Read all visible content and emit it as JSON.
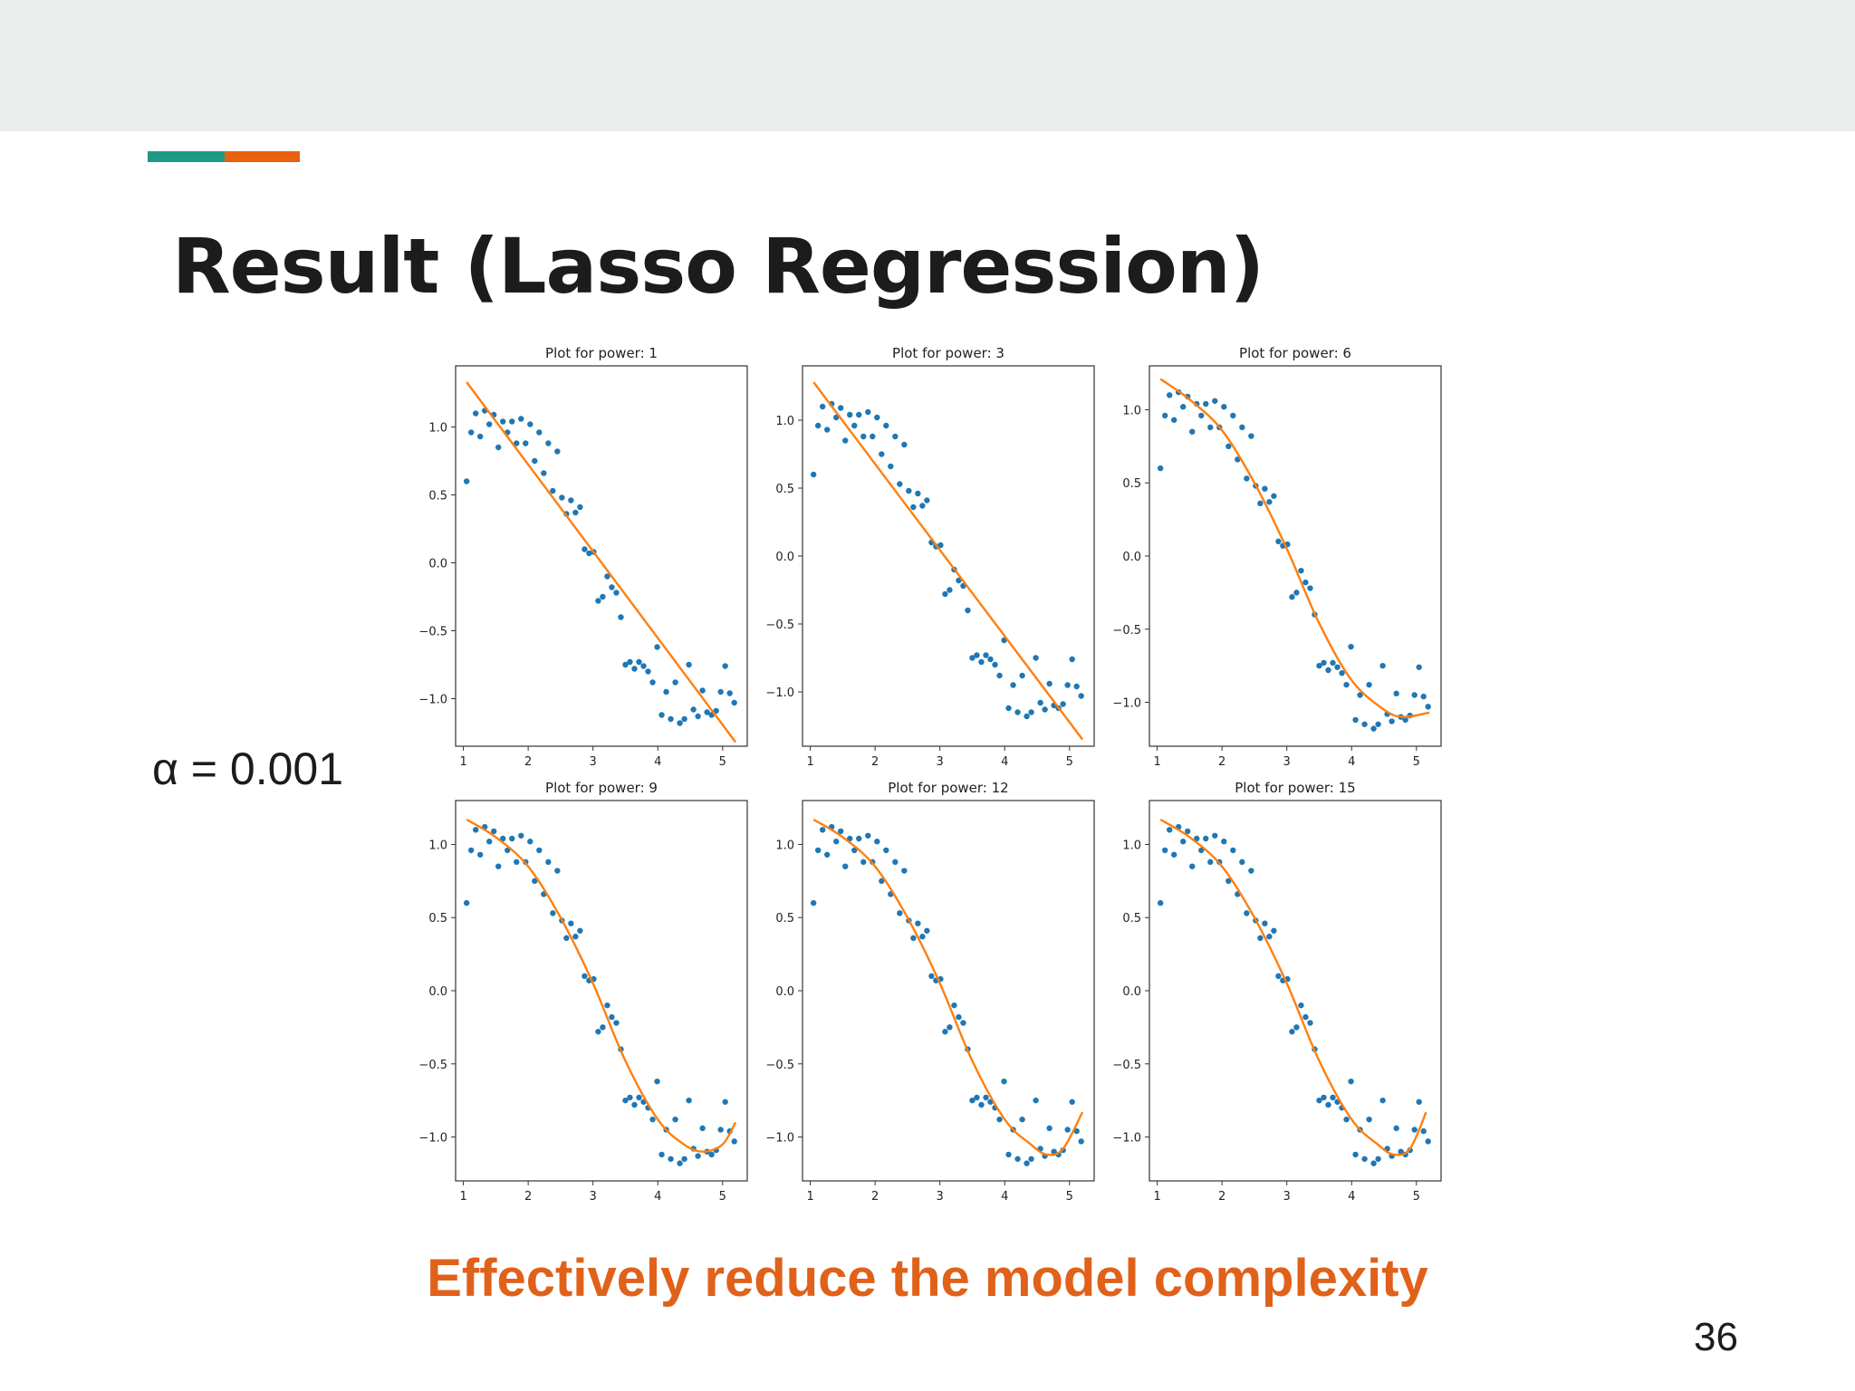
{
  "slide": {
    "title": "Result (Lasso Regression)",
    "alpha_label": "α = 0.001",
    "caption": "Effectively reduce the model complexity",
    "page_number": "36",
    "colors": {
      "header_band": "#e9eeed",
      "accent_teal": "#1e9a86",
      "accent_orange": "#e8620f",
      "caption": "#e0611a",
      "points": "#1f77b4",
      "fit_line": "#ff7f0e"
    }
  },
  "chart_data": [
    {
      "type": "scatter",
      "title": "Plot for power: 1",
      "xlim": [
        0.88,
        5.38
      ],
      "ylim": [
        -1.35,
        1.45
      ],
      "xticks": [
        1,
        2,
        3,
        4,
        5
      ],
      "yticks": [
        1.0,
        0.5,
        0.0,
        -0.5,
        -1.0
      ],
      "fit_curve": [
        [
          1.05,
          1.33
        ],
        [
          5.2,
          -1.32
        ]
      ]
    },
    {
      "type": "scatter",
      "title": "Plot for power: 3",
      "xlim": [
        0.88,
        5.38
      ],
      "ylim": [
        -1.4,
        1.4
      ],
      "xticks": [
        1,
        2,
        3,
        4,
        5
      ],
      "yticks": [
        1.0,
        0.5,
        0.0,
        -0.5,
        -1.0
      ],
      "fit_curve": [
        [
          1.05,
          1.28
        ],
        [
          5.2,
          -1.35
        ]
      ]
    },
    {
      "type": "scatter",
      "title": "Plot for power: 6",
      "xlim": [
        0.88,
        5.38
      ],
      "ylim": [
        -1.3,
        1.3
      ],
      "xticks": [
        1,
        2,
        3,
        4,
        5
      ],
      "yticks": [
        1.0,
        0.5,
        0.0,
        -0.5,
        -1.0
      ],
      "fit_curve": [
        [
          1.05,
          1.21
        ],
        [
          1.5,
          1.07
        ],
        [
          2.0,
          0.86
        ],
        [
          2.5,
          0.5
        ],
        [
          3.0,
          0.05
        ],
        [
          3.5,
          -0.46
        ],
        [
          4.0,
          -0.85
        ],
        [
          4.5,
          -1.05
        ],
        [
          4.8,
          -1.1
        ],
        [
          5.2,
          -1.07
        ]
      ]
    },
    {
      "type": "scatter",
      "title": "Plot for power: 9",
      "xlim": [
        0.88,
        5.38
      ],
      "ylim": [
        -1.3,
        1.3
      ],
      "xticks": [
        1,
        2,
        3,
        4,
        5
      ],
      "yticks": [
        1.0,
        0.5,
        0.0,
        -0.5,
        -1.0
      ],
      "fit_curve": [
        [
          1.05,
          1.17
        ],
        [
          1.5,
          1.05
        ],
        [
          2.0,
          0.85
        ],
        [
          2.5,
          0.5
        ],
        [
          3.0,
          0.05
        ],
        [
          3.5,
          -0.48
        ],
        [
          4.0,
          -0.88
        ],
        [
          4.4,
          -1.05
        ],
        [
          4.7,
          -1.1
        ],
        [
          5.0,
          -1.05
        ],
        [
          5.2,
          -0.9
        ]
      ]
    },
    {
      "type": "scatter",
      "title": "Plot for power: 12",
      "xlim": [
        0.88,
        5.38
      ],
      "ylim": [
        -1.3,
        1.3
      ],
      "xticks": [
        1,
        2,
        3,
        4,
        5
      ],
      "yticks": [
        1.0,
        0.5,
        0.0,
        -0.5,
        -1.0
      ],
      "fit_curve": [
        [
          1.05,
          1.17
        ],
        [
          1.5,
          1.05
        ],
        [
          2.0,
          0.85
        ],
        [
          2.5,
          0.5
        ],
        [
          3.0,
          0.05
        ],
        [
          3.5,
          -0.48
        ],
        [
          4.0,
          -0.88
        ],
        [
          4.4,
          -1.05
        ],
        [
          4.65,
          -1.12
        ],
        [
          4.9,
          -1.08
        ],
        [
          5.2,
          -0.83
        ]
      ]
    },
    {
      "type": "scatter",
      "title": "Plot for power: 15",
      "xlim": [
        0.88,
        5.38
      ],
      "ylim": [
        -1.3,
        1.3
      ],
      "xticks": [
        1,
        2,
        3,
        4,
        5
      ],
      "yticks": [
        1.0,
        0.5,
        0.0,
        -0.5,
        -1.0
      ],
      "fit_curve": [
        [
          1.05,
          1.17
        ],
        [
          1.5,
          1.05
        ],
        [
          2.0,
          0.85
        ],
        [
          2.5,
          0.5
        ],
        [
          3.0,
          0.05
        ],
        [
          3.5,
          -0.48
        ],
        [
          4.0,
          -0.88
        ],
        [
          4.4,
          -1.05
        ],
        [
          4.65,
          -1.12
        ],
        [
          4.9,
          -1.08
        ],
        [
          5.15,
          -0.83
        ]
      ]
    }
  ],
  "shared_points": {
    "x": [
      1.05,
      1.12,
      1.19,
      1.26,
      1.33,
      1.4,
      1.47,
      1.54,
      1.61,
      1.68,
      1.75,
      1.82,
      1.89,
      1.96,
      2.03,
      2.1,
      2.17,
      2.24,
      2.31,
      2.38,
      2.45,
      2.52,
      2.59,
      2.66,
      2.73,
      2.8,
      2.87,
      2.94,
      3.01,
      3.08,
      3.15,
      3.22,
      3.29,
      3.36,
      3.43,
      3.5,
      3.57,
      3.64,
      3.71,
      3.78,
      3.85,
      3.92,
      3.99,
      4.06,
      4.13,
      4.2,
      4.27,
      4.34,
      4.41,
      4.48,
      4.55,
      4.62,
      4.69,
      4.76,
      4.83,
      4.9,
      4.97,
      5.04,
      5.11,
      5.18
    ],
    "y": [
      0.6,
      0.96,
      1.1,
      0.93,
      1.12,
      1.02,
      1.09,
      0.85,
      1.04,
      0.96,
      1.04,
      0.88,
      1.06,
      0.88,
      1.02,
      0.75,
      0.96,
      0.66,
      0.88,
      0.53,
      0.82,
      0.48,
      0.36,
      0.46,
      0.37,
      0.41,
      0.1,
      0.07,
      0.08,
      -0.28,
      -0.25,
      -0.1,
      -0.18,
      -0.22,
      -0.4,
      -0.75,
      -0.73,
      -0.78,
      -0.73,
      -0.76,
      -0.8,
      -0.88,
      -0.62,
      -1.12,
      -0.95,
      -1.15,
      -0.88,
      -1.18,
      -1.15,
      -0.75,
      -1.08,
      -1.13,
      -0.94,
      -1.1,
      -1.12,
      -1.09,
      -0.95,
      -0.76,
      -0.96,
      -1.03
    ]
  }
}
